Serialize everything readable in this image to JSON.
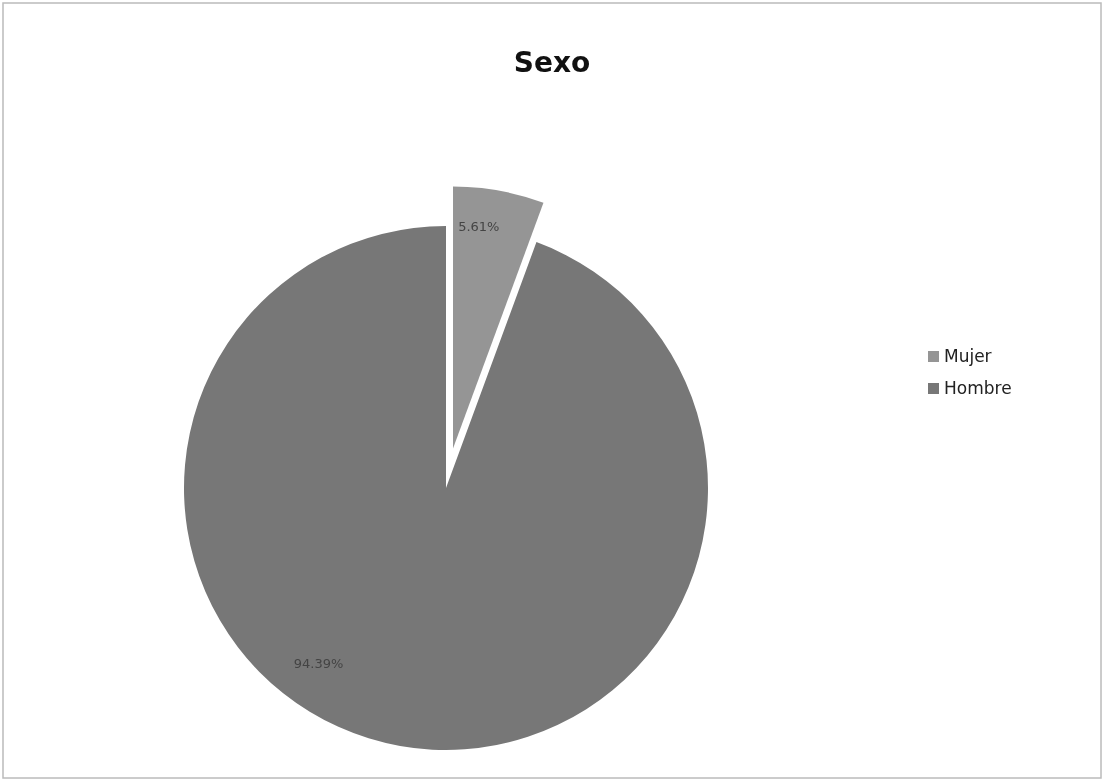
{
  "chart_data": {
    "type": "pie",
    "title": "Sexo",
    "categories": [
      "Mujer",
      "Hombre"
    ],
    "values": [
      5.61,
      94.39
    ],
    "colors": [
      "#959595",
      "#777777"
    ],
    "value_labels": [
      "5.61%",
      "94.39%"
    ],
    "legend": "right"
  }
}
